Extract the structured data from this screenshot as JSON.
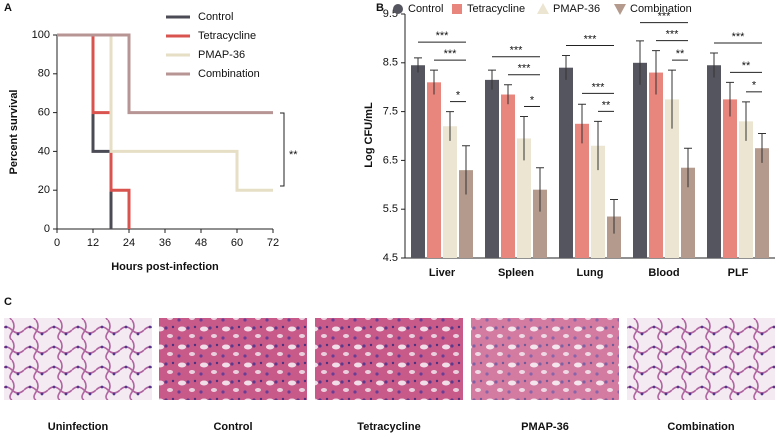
{
  "chart_data": [
    {
      "type": "line",
      "step": true,
      "panel_label": "A",
      "x_label": "Hours post-infection",
      "y_label": "Percent survival",
      "xlim": [
        0,
        72
      ],
      "xticks": [
        0,
        12,
        24,
        36,
        48,
        60,
        72
      ],
      "ylim": [
        0,
        100
      ],
      "yticks": [
        0,
        20,
        40,
        60,
        80,
        100
      ],
      "legend": "top-right",
      "series": [
        {
          "name": "Control",
          "color": "#4b4b55",
          "x": [
            0,
            12,
            18
          ],
          "values": [
            100,
            40,
            0
          ]
        },
        {
          "name": "Tetracycline",
          "color": "#d9534f",
          "x": [
            0,
            12,
            18,
            24
          ],
          "values": [
            100,
            60,
            20,
            0
          ]
        },
        {
          "name": "PMAP-36",
          "color": "#e6dfc6",
          "x": [
            0,
            18,
            60,
            72
          ],
          "values": [
            100,
            40,
            20,
            20
          ]
        },
        {
          "name": "Combination",
          "color": "#b89595",
          "x": [
            0,
            24,
            72
          ],
          "values": [
            100,
            60,
            60
          ]
        }
      ],
      "annotations": [
        "**"
      ]
    },
    {
      "type": "bar",
      "panel_label": "B",
      "y_label": "Log CFU/mL",
      "categories": [
        "Liver",
        "Spleen",
        "Lung",
        "Blood",
        "PLF"
      ],
      "ylim": [
        4.5,
        9.5
      ],
      "yticks": [
        4.5,
        5.5,
        6.5,
        7.5,
        8.5,
        9.5
      ],
      "legend": "top",
      "series": [
        {
          "name": "Control",
          "color": "#55555f",
          "marker": "circle",
          "values": [
            8.45,
            8.15,
            8.4,
            8.5,
            8.45
          ],
          "errors": [
            0.15,
            0.2,
            0.25,
            0.45,
            0.25
          ]
        },
        {
          "name": "Tetracycline",
          "color": "#e8867d",
          "marker": "square",
          "values": [
            8.1,
            7.85,
            7.25,
            8.3,
            7.75
          ],
          "errors": [
            0.25,
            0.2,
            0.4,
            0.45,
            0.35
          ]
        },
        {
          "name": "PMAP-36",
          "color": "#ebe5d2",
          "marker": "triangle-up",
          "values": [
            7.2,
            6.95,
            6.8,
            7.75,
            7.3
          ],
          "errors": [
            0.3,
            0.45,
            0.5,
            0.6,
            0.4
          ]
        },
        {
          "name": "Combination",
          "color": "#b39a8c",
          "marker": "triangle-down",
          "values": [
            6.3,
            5.9,
            5.35,
            6.35,
            6.75
          ],
          "errors": [
            0.5,
            0.45,
            0.35,
            0.4,
            0.3
          ]
        }
      ],
      "significance": [
        [
          "***",
          "***",
          "*"
        ],
        [
          "***",
          "***",
          "*"
        ],
        [
          "***",
          "***",
          "**"
        ],
        [
          "***",
          "***",
          "**"
        ],
        [
          "***",
          "**",
          "*"
        ]
      ]
    }
  ],
  "histology": {
    "panel_label": "C",
    "captions": [
      "Uninfection",
      "Control",
      "Tetracycline",
      "PMAP-36",
      "Combination"
    ]
  }
}
